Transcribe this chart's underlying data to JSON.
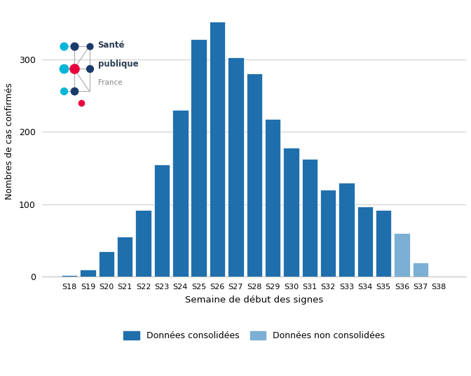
{
  "categories": [
    "S18",
    "S19",
    "S20",
    "S21",
    "S22",
    "S23",
    "S24",
    "S25",
    "S26",
    "S27",
    "S28",
    "S29",
    "S30",
    "S31",
    "S32",
    "S33",
    "S34",
    "S35",
    "S36",
    "S37",
    "S38"
  ],
  "values": [
    2,
    10,
    35,
    55,
    92,
    155,
    230,
    328,
    352,
    303,
    280,
    218,
    178,
    163,
    120,
    130,
    97,
    92,
    60,
    20,
    0
  ],
  "consolidated_color": "#1f6fad",
  "non_consolidated_color": "#7bafd4",
  "consolidated_cutoff": 18,
  "ylabel": "Nombres de cas confirmés",
  "xlabel": "Semaine de début des signes",
  "ylim": [
    0,
    375
  ],
  "yticks": [
    0,
    100,
    200,
    300
  ],
  "background_color": "#ffffff",
  "legend_consolidated": "Données consolidées",
  "legend_non_consolidated": "Données non consolidées",
  "grid_color": "#d0d0d0",
  "border_color": "#c0c0c0",
  "fig_border_color": "#a0a0a0"
}
